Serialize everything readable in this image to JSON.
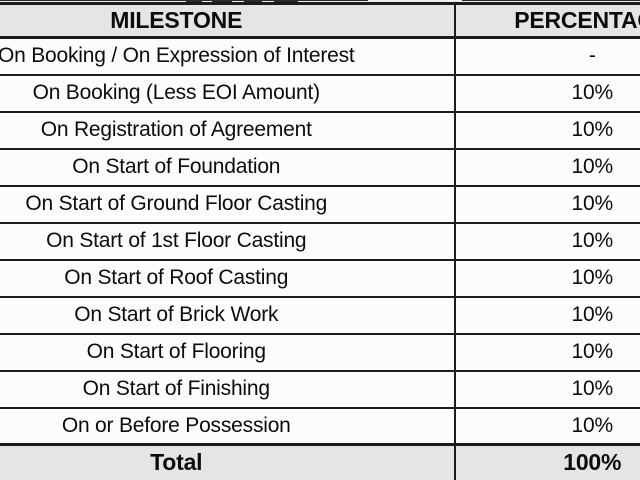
{
  "table": {
    "header": {
      "milestone": "MILESTONE",
      "percentage": "PERCENTAGE"
    },
    "rows": [
      {
        "milestone": "On Booking / On Expression of Interest",
        "percentage": "-"
      },
      {
        "milestone": "On Booking (Less EOI Amount)",
        "percentage": "10%"
      },
      {
        "milestone": "On Registration of Agreement",
        "percentage": "10%"
      },
      {
        "milestone": "On Start of Foundation",
        "percentage": "10%"
      },
      {
        "milestone": "On Start of Ground Floor Casting",
        "percentage": "10%"
      },
      {
        "milestone": "On Start of 1st Floor Casting",
        "percentage": "10%"
      },
      {
        "milestone": "On Start of Roof Casting",
        "percentage": "10%"
      },
      {
        "milestone": "On Start of Brick Work",
        "percentage": "10%"
      },
      {
        "milestone": "On Start of Flooring",
        "percentage": "10%"
      },
      {
        "milestone": "On Start of Finishing",
        "percentage": "10%"
      },
      {
        "milestone": "On or Before Possession",
        "percentage": "10%"
      }
    ],
    "footer": {
      "label": "Total",
      "percentage": "100%"
    }
  },
  "colors": {
    "header_bg": "#e6e5e3",
    "row_bg": "#fcfcfb",
    "border": "#1b1b1b",
    "text": "#0c0c0c",
    "page_bg": "#f0eeea"
  }
}
